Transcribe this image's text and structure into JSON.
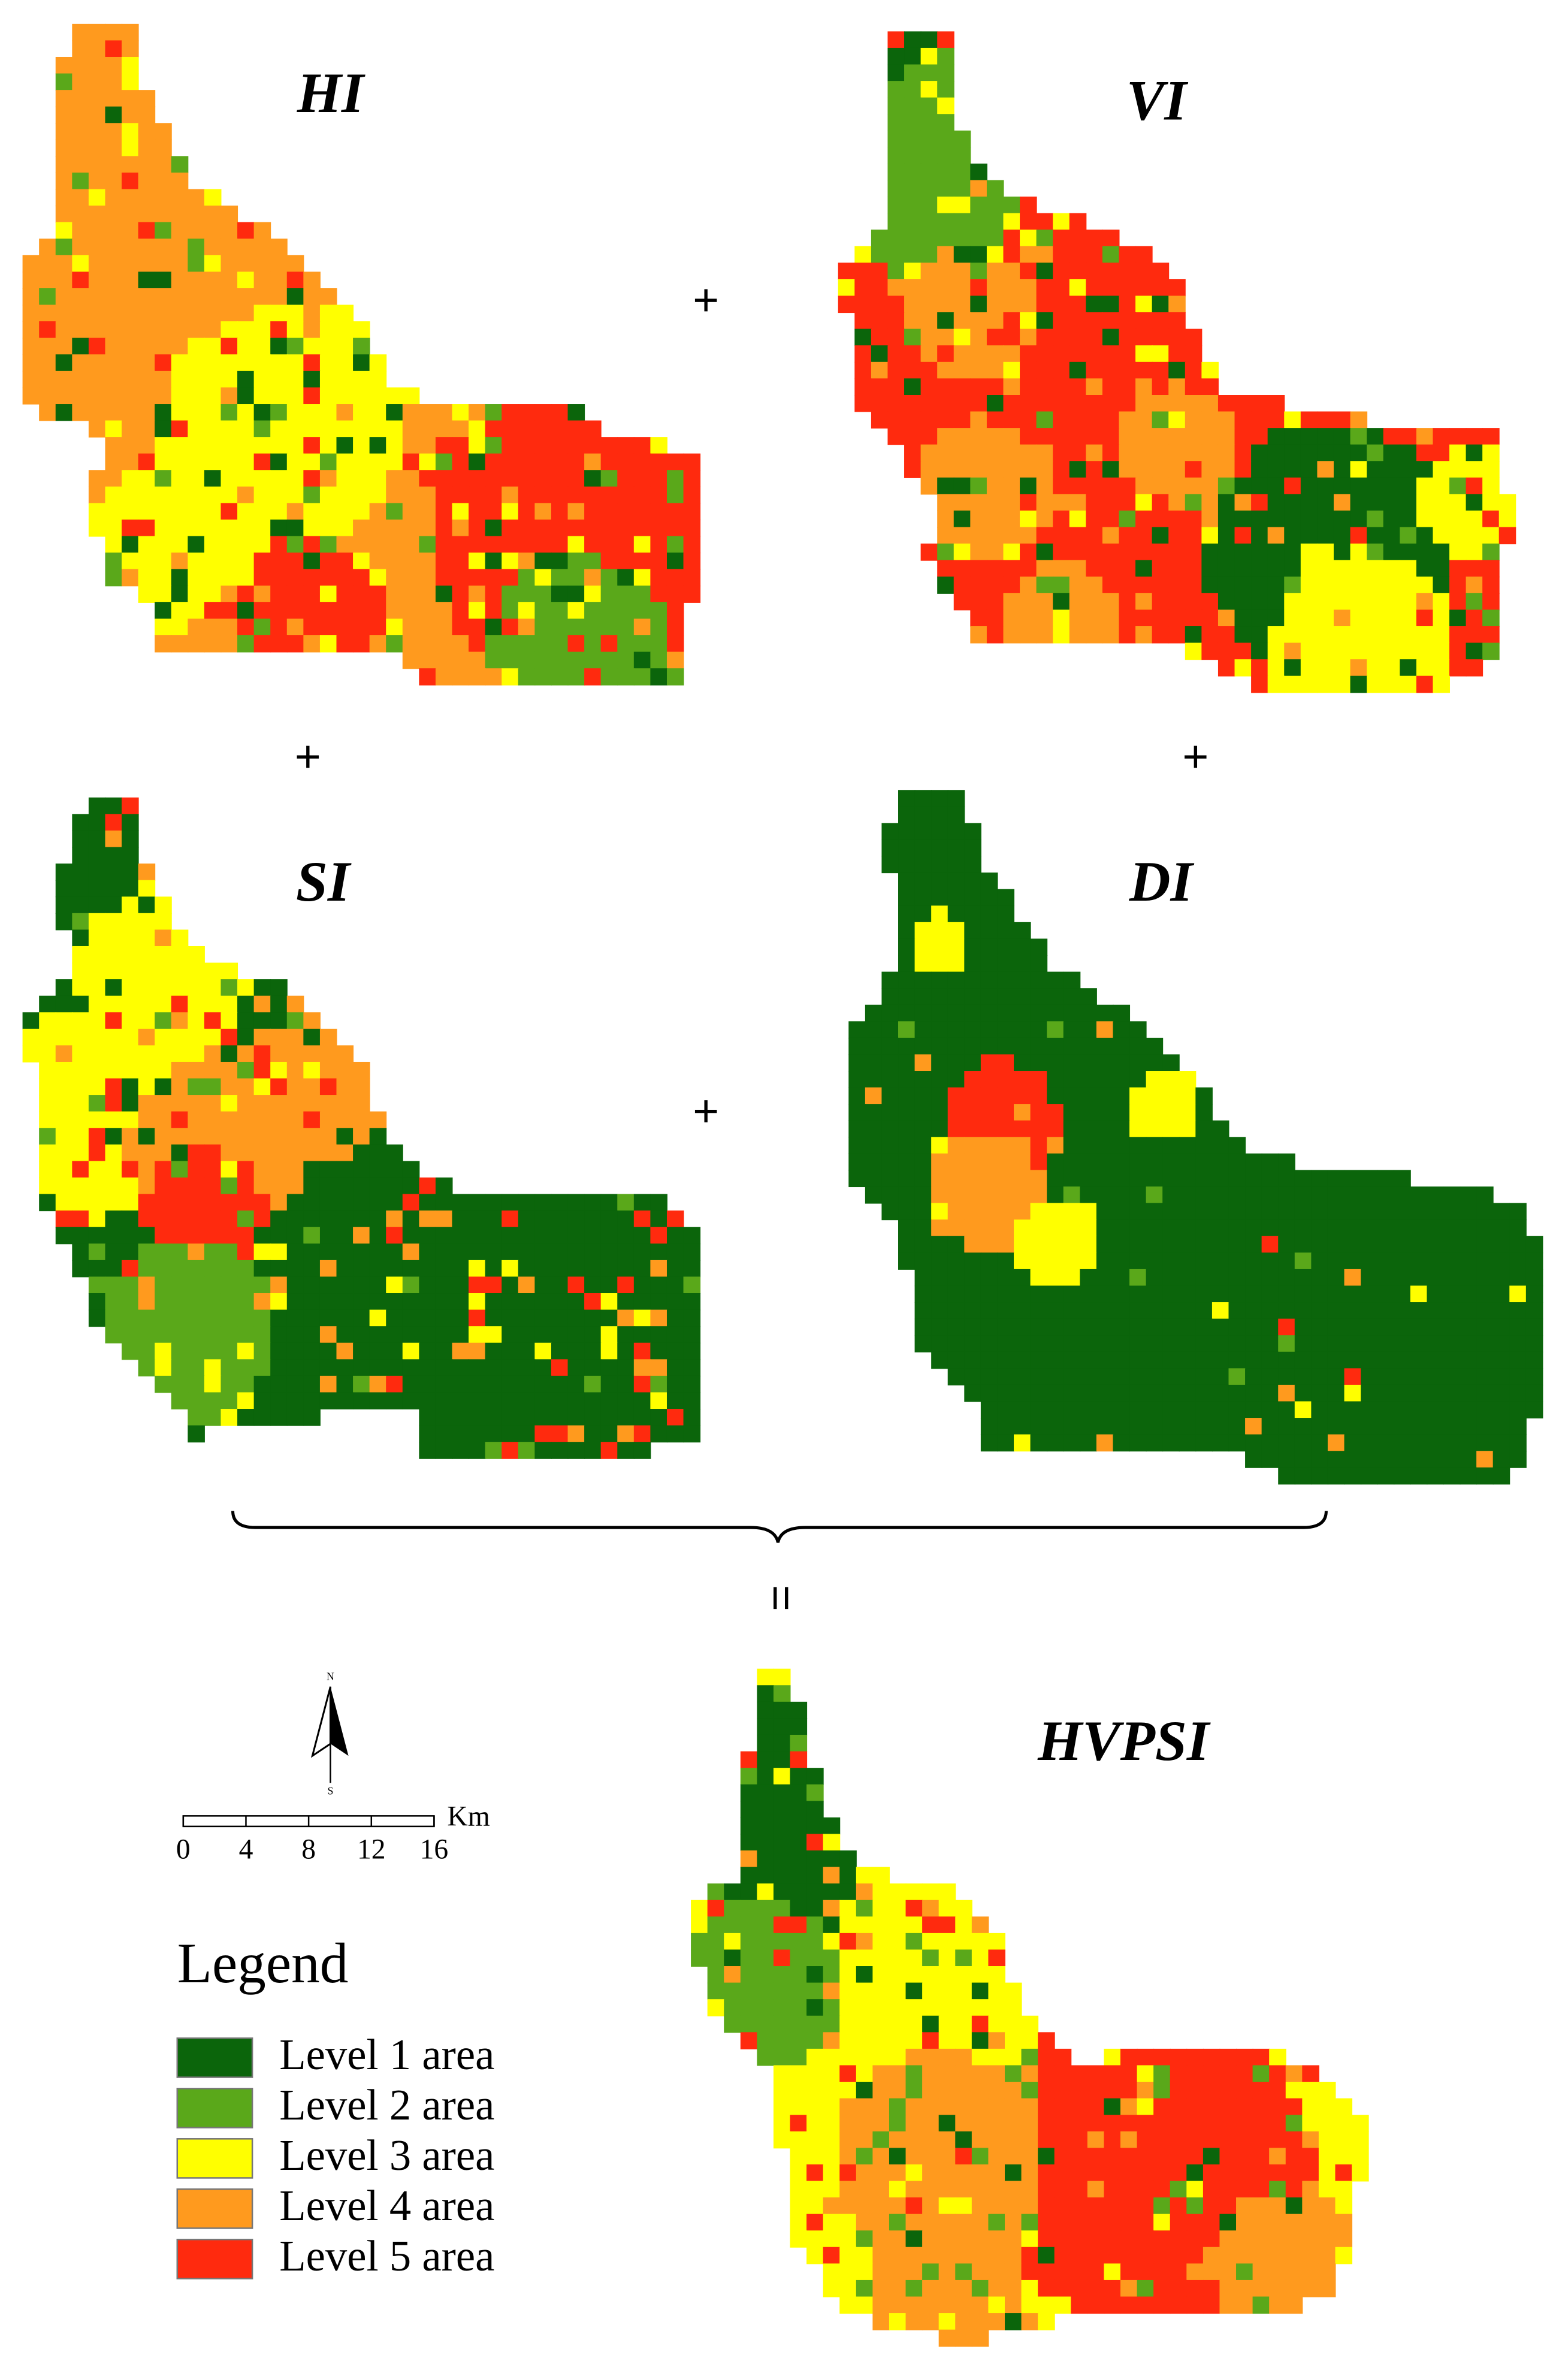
{
  "panels": [
    {
      "label": "HI"
    },
    {
      "label": "VI"
    },
    {
      "label": "SI"
    },
    {
      "label": "DI"
    },
    {
      "label": "HVPSI"
    }
  ],
  "operators": [
    "+",
    "+",
    "+",
    "+",
    "="
  ],
  "north_arrow": {
    "north": "N",
    "south": "S"
  },
  "scale_bar": {
    "ticks": [
      0,
      4,
      8,
      12,
      16
    ],
    "unit": "Km"
  },
  "legend": {
    "title": "Legend",
    "items": [
      {
        "label": "Level 1 area",
        "color": "#0b650b"
      },
      {
        "label": "Level 2 area",
        "color": "#5aa81a"
      },
      {
        "label": "Level 3 area",
        "color": "#ffff00"
      },
      {
        "label": "Level 4 area",
        "color": "#ff9a1e"
      },
      {
        "label": "Level 5 area",
        "color": "#ff2a0e"
      }
    ]
  }
}
